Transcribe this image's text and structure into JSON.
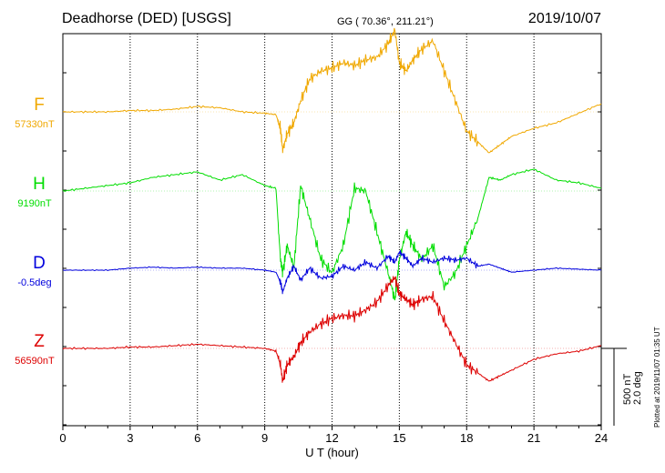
{
  "header": {
    "station": "Deadhorse (DED)  [USGS]",
    "coords": "GG ( 70.36°, 211.21°)",
    "date": "2019/10/07"
  },
  "scale_labels": {
    "nt": "500 nT",
    "deg": "2.0 deg"
  },
  "plotted_note": "Plotted at 2019/11/07 01:35 UT",
  "chart_data": {
    "type": "line",
    "title": "Deadhorse (DED)  [USGS]",
    "xlabel": "U T (hour)",
    "ylabel": "",
    "xlim": [
      0,
      24
    ],
    "xticks": [
      "0",
      "3",
      "6",
      "9",
      "12",
      "15",
      "18",
      "21",
      "24"
    ],
    "grid": true,
    "legend": "left",
    "series": [
      {
        "name": "F",
        "baseline_label": "57330nT",
        "color": "#f0a800",
        "unit": "nT",
        "x": [
          0,
          1,
          2,
          3,
          4,
          5,
          6,
          7,
          8,
          9,
          9.5,
          9.7,
          9.8,
          10,
          10.3,
          10.6,
          11,
          11.5,
          12,
          12.5,
          13,
          13.5,
          14,
          14.5,
          14.8,
          15,
          15.3,
          15.6,
          16,
          16.5,
          17,
          17.5,
          18,
          18.5,
          19,
          19.5,
          20,
          21,
          22,
          23,
          24
        ],
        "values": [
          0,
          0,
          0,
          5,
          5,
          10,
          20,
          15,
          0,
          -5,
          -10,
          -60,
          -140,
          -80,
          -40,
          40,
          120,
          150,
          160,
          180,
          170,
          190,
          200,
          250,
          300,
          180,
          150,
          190,
          230,
          260,
          150,
          40,
          -70,
          -110,
          -150,
          -120,
          -90,
          -60,
          -40,
          -5,
          30
        ]
      },
      {
        "name": "H",
        "baseline_label": "9190nT",
        "color": "#00dd00",
        "unit": "nT",
        "x": [
          0,
          1,
          2,
          3,
          4,
          5,
          6,
          7,
          8,
          9,
          9.5,
          9.7,
          9.8,
          10,
          10.3,
          10.6,
          11,
          11.5,
          12,
          12.5,
          13,
          13.5,
          14,
          14.5,
          14.8,
          15,
          15.3,
          15.6,
          16,
          16.5,
          17,
          17.5,
          18,
          18.5,
          19,
          19.5,
          20,
          21,
          22,
          23,
          24
        ],
        "values": [
          0,
          10,
          20,
          30,
          50,
          60,
          70,
          40,
          60,
          20,
          10,
          -250,
          -300,
          -200,
          -280,
          20,
          -100,
          -250,
          -300,
          -200,
          10,
          0,
          -150,
          -300,
          -400,
          -250,
          -150,
          -200,
          -250,
          -200,
          -350,
          -300,
          -200,
          -100,
          50,
          40,
          60,
          80,
          40,
          30,
          10
        ]
      },
      {
        "name": "D",
        "baseline_label": "-0.5deg",
        "color": "#0000dd",
        "unit": "deg",
        "x": [
          0,
          1,
          2,
          3,
          4,
          5,
          6,
          7,
          8,
          9,
          9.5,
          9.7,
          9.8,
          10,
          10.3,
          10.6,
          11,
          11.5,
          12,
          12.5,
          13,
          13.5,
          14,
          14.5,
          14.8,
          15,
          15.3,
          15.6,
          16,
          16.5,
          17,
          17.5,
          18,
          18.5,
          19,
          19.5,
          20,
          21,
          22,
          23,
          24
        ],
        "values": [
          0,
          0,
          0,
          0.1,
          0.15,
          0.1,
          0.15,
          0.1,
          0.1,
          0,
          -0.1,
          -0.6,
          -1.1,
          -0.4,
          0.2,
          -0.5,
          0.1,
          -0.4,
          -0.3,
          0.2,
          0.0,
          0.4,
          0.1,
          0.7,
          0.4,
          0.9,
          0.6,
          0.2,
          0.6,
          0.4,
          0.6,
          0.5,
          0.6,
          0.2,
          0.3,
          0.1,
          -0.1,
          0.0,
          0.1,
          0.05,
          0.0
        ]
      },
      {
        "name": "Z",
        "baseline_label": "56590nT",
        "color": "#dd0000",
        "unit": "nT",
        "x": [
          0,
          1,
          2,
          3,
          4,
          5,
          6,
          7,
          8,
          9,
          9.5,
          9.7,
          9.8,
          10,
          10.3,
          10.6,
          11,
          11.5,
          12,
          12.5,
          13,
          13.5,
          14,
          14.5,
          14.8,
          15,
          15.3,
          15.6,
          16,
          16.5,
          17,
          17.5,
          18,
          18.5,
          19,
          19.5,
          20,
          21,
          22,
          23,
          24
        ],
        "values": [
          0,
          0,
          0,
          5,
          5,
          10,
          15,
          10,
          5,
          0,
          -10,
          -60,
          -120,
          -60,
          -30,
          20,
          60,
          90,
          110,
          120,
          120,
          140,
          170,
          230,
          260,
          200,
          180,
          160,
          180,
          190,
          100,
          20,
          -60,
          -90,
          -120,
          -100,
          -80,
          -40,
          -20,
          -10,
          10
        ]
      }
    ]
  }
}
